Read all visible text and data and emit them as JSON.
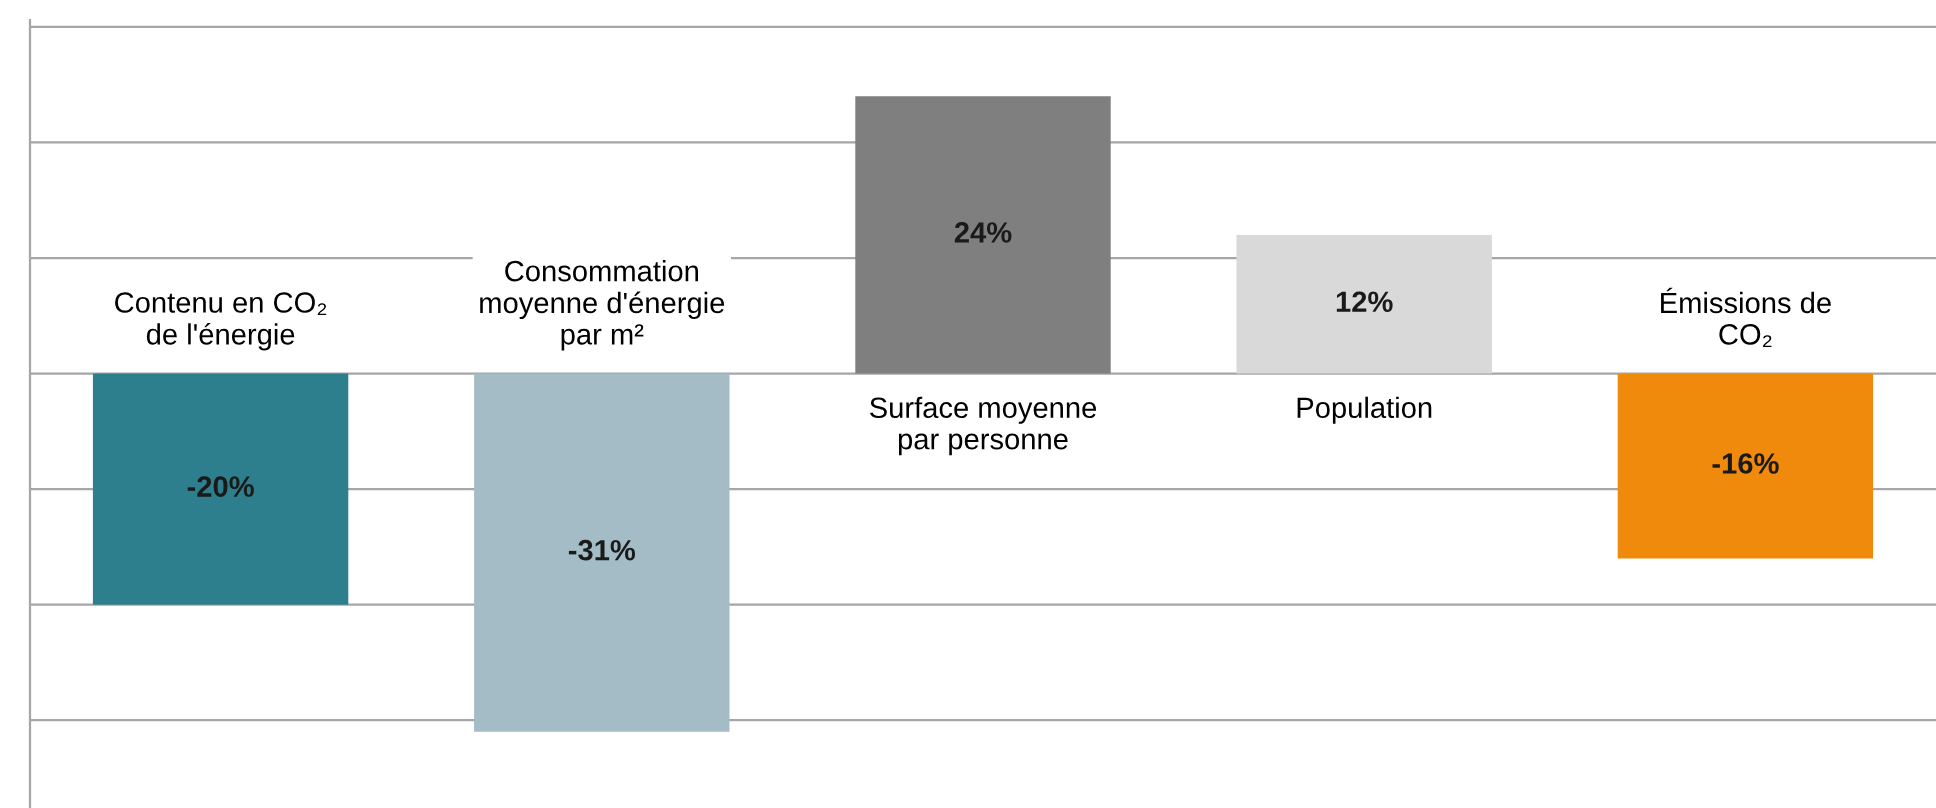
{
  "chart_data": {
    "type": "bar",
    "categories": [
      "Contenu en CO₂\nde l'énergie",
      "Consommation\nmoyenne d'énergie\npar m²",
      "Surface moyenne\npar personne",
      "Population",
      "Émissions de\nCO₂"
    ],
    "values": [
      -20,
      -31,
      24,
      12,
      -16
    ],
    "value_labels": [
      "-20%",
      "-31%",
      "24%",
      "12%",
      "-16%"
    ],
    "colors": [
      "#2e7f8e",
      "#a3bcc5",
      "#7f7f7f",
      "#d9d9d9",
      "#f08a0c"
    ],
    "grid": "y",
    "tick_labels": false
  }
}
